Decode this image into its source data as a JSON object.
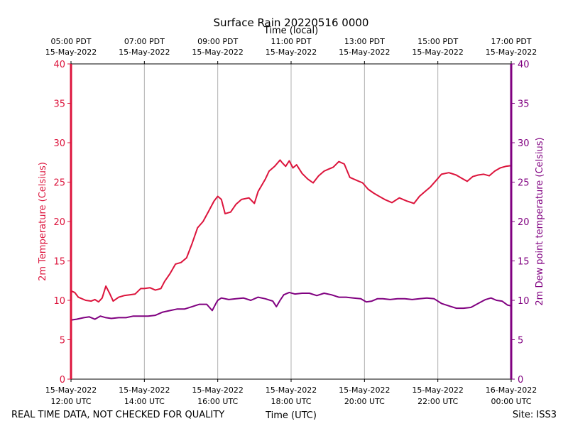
{
  "chart_data": {
    "type": "line",
    "title": "Surface Rain 20220516 0000",
    "top_axis_label": "Time (local)",
    "xlabel": "Time (UTC)",
    "ylabel_left": "2m Temperature (Celsius)",
    "ylabel_right": "2m Dew point temperature (Celsius)",
    "footer_left": "REAL TIME DATA, NOT CHECKED FOR QUALITY",
    "footer_right": "Site: ISS3",
    "x_range_hours_utc": [
      12,
      24
    ],
    "ylim": [
      0,
      40
    ],
    "y_ticks": [
      "0",
      "5",
      "10",
      "15",
      "20",
      "25",
      "30",
      "35",
      "40"
    ],
    "grid": "vertical",
    "colors": {
      "temperature": "#dc143c",
      "dewpoint": "#800080"
    },
    "bottom_ticks": [
      {
        "hour": 12,
        "date": "15-May-2022",
        "time": "12:00 UTC"
      },
      {
        "hour": 14,
        "date": "15-May-2022",
        "time": "14:00 UTC"
      },
      {
        "hour": 16,
        "date": "15-May-2022",
        "time": "16:00 UTC"
      },
      {
        "hour": 18,
        "date": "15-May-2022",
        "time": "18:00 UTC"
      },
      {
        "hour": 20,
        "date": "15-May-2022",
        "time": "20:00 UTC"
      },
      {
        "hour": 22,
        "date": "15-May-2022",
        "time": "22:00 UTC"
      },
      {
        "hour": 24,
        "date": "16-May-2022",
        "time": "00:00 UTC"
      }
    ],
    "top_ticks": [
      {
        "hour": 12,
        "time": "05:00 PDT",
        "date": "15-May-2022"
      },
      {
        "hour": 14,
        "time": "07:00 PDT",
        "date": "15-May-2022"
      },
      {
        "hour": 16,
        "time": "09:00 PDT",
        "date": "15-May-2022"
      },
      {
        "hour": 18,
        "time": "11:00 PDT",
        "date": "15-May-2022"
      },
      {
        "hour": 20,
        "time": "13:00 PDT",
        "date": "15-May-2022"
      },
      {
        "hour": 22,
        "time": "15:00 PDT",
        "date": "15-May-2022"
      },
      {
        "hour": 24,
        "time": "17:00 PDT",
        "date": "15-May-2022"
      }
    ],
    "series": [
      {
        "key": "temperature",
        "x": [
          12.0,
          12.1,
          12.2,
          12.4,
          12.55,
          12.65,
          12.75,
          12.85,
          12.95,
          13.05,
          13.15,
          13.3,
          13.45,
          13.6,
          13.75,
          13.9,
          14.0,
          14.15,
          14.3,
          14.45,
          14.55,
          14.7,
          14.85,
          15.0,
          15.15,
          15.3,
          15.45,
          15.6,
          15.75,
          15.9,
          16.0,
          16.1,
          16.2,
          16.35,
          16.5,
          16.65,
          16.85,
          17.0,
          17.1,
          17.2,
          17.3,
          17.4,
          17.55,
          17.7,
          17.75,
          17.85,
          17.95,
          18.05,
          18.15,
          18.3,
          18.45,
          18.6,
          18.75,
          18.9,
          19.0,
          19.15,
          19.3,
          19.45,
          19.6,
          19.8,
          19.95,
          20.1,
          20.25,
          20.4,
          20.55,
          20.75,
          20.95,
          21.15,
          21.35,
          21.5,
          21.65,
          21.8,
          21.95,
          22.1,
          22.3,
          22.5,
          22.65,
          22.8,
          22.95,
          23.1,
          23.25,
          23.4,
          23.55,
          23.7,
          23.85,
          24.0
        ],
        "y": [
          11.2,
          11.0,
          10.4,
          10.0,
          9.9,
          10.1,
          9.8,
          10.3,
          11.8,
          10.9,
          9.9,
          10.4,
          10.6,
          10.7,
          10.8,
          11.5,
          11.5,
          11.6,
          11.3,
          11.5,
          12.4,
          13.4,
          14.6,
          14.8,
          15.4,
          17.2,
          19.2,
          20.0,
          21.3,
          22.6,
          23.2,
          22.8,
          21.0,
          21.2,
          22.2,
          22.8,
          23.0,
          22.3,
          23.8,
          24.6,
          25.4,
          26.4,
          27.0,
          27.8,
          27.5,
          27.0,
          27.7,
          26.8,
          27.2,
          26.1,
          25.4,
          24.9,
          25.8,
          26.4,
          26.6,
          26.9,
          27.6,
          27.3,
          25.6,
          25.2,
          24.9,
          24.1,
          23.6,
          23.2,
          22.8,
          22.4,
          23.0,
          22.6,
          22.3,
          23.2,
          23.8,
          24.4,
          25.2,
          26.0,
          26.2,
          25.9,
          25.5,
          25.1,
          25.7,
          25.9,
          26.0,
          25.8,
          26.4,
          26.8,
          27.0,
          27.1
        ]
      },
      {
        "key": "dewpoint",
        "x": [
          12.0,
          12.15,
          12.35,
          12.5,
          12.65,
          12.8,
          12.95,
          13.1,
          13.3,
          13.5,
          13.7,
          13.9,
          14.1,
          14.3,
          14.5,
          14.7,
          14.9,
          15.1,
          15.3,
          15.5,
          15.7,
          15.85,
          15.95,
          16.0,
          16.1,
          16.3,
          16.5,
          16.7,
          16.9,
          17.1,
          17.3,
          17.5,
          17.6,
          17.7,
          17.8,
          17.95,
          18.1,
          18.3,
          18.5,
          18.7,
          18.9,
          19.1,
          19.3,
          19.5,
          19.7,
          19.9,
          20.05,
          20.2,
          20.35,
          20.5,
          20.7,
          20.9,
          21.1,
          21.3,
          21.5,
          21.7,
          21.9,
          22.1,
          22.3,
          22.5,
          22.7,
          22.9,
          23.1,
          23.3,
          23.45,
          23.6,
          23.75,
          23.9,
          24.0
        ],
        "y": [
          7.5,
          7.6,
          7.8,
          7.9,
          7.6,
          8.0,
          7.8,
          7.7,
          7.8,
          7.8,
          8.0,
          8.0,
          8.0,
          8.1,
          8.5,
          8.7,
          8.9,
          8.9,
          9.2,
          9.5,
          9.5,
          8.7,
          9.6,
          10.0,
          10.3,
          10.1,
          10.2,
          10.3,
          10.0,
          10.4,
          10.2,
          9.9,
          9.2,
          10.0,
          10.7,
          11.0,
          10.8,
          10.9,
          10.9,
          10.6,
          10.9,
          10.7,
          10.4,
          10.4,
          10.3,
          10.2,
          9.8,
          9.9,
          10.2,
          10.2,
          10.1,
          10.2,
          10.2,
          10.1,
          10.2,
          10.3,
          10.2,
          9.6,
          9.3,
          9.0,
          9.0,
          9.1,
          9.6,
          10.1,
          10.3,
          10.0,
          9.9,
          9.4,
          9.3
        ]
      }
    ]
  }
}
